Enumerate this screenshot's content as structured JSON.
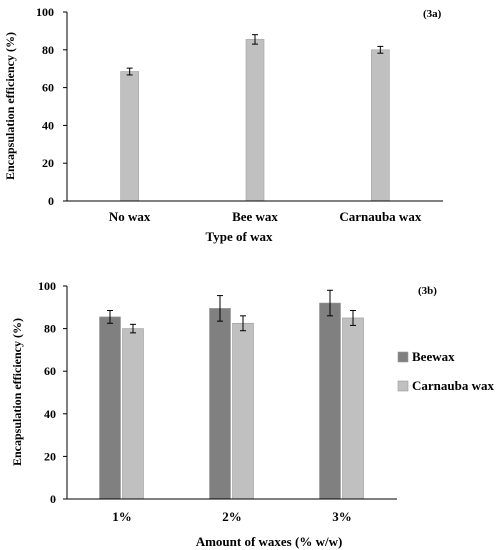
{
  "chart_data": [
    {
      "type": "bar",
      "panel_label": "(3a)",
      "categories": [
        "No wax",
        "Bee wax",
        "Carnauba wax"
      ],
      "values": [
        68.5,
        85.5,
        80
      ],
      "errors": [
        1.8,
        2.5,
        1.8
      ],
      "xlabel": "Type of wax",
      "ylabel": "Encapsulation efficiency (%)",
      "ylim": [
        0,
        100
      ],
      "yticks": [
        "0",
        "20",
        "40",
        "60",
        "80",
        "100"
      ],
      "colors": [
        "#c0c0c0"
      ]
    },
    {
      "type": "bar",
      "panel_label": "(3b)",
      "categories": [
        "1%",
        "2%",
        "3%"
      ],
      "series": [
        {
          "name": "Beewax",
          "values": [
            85.5,
            89.5,
            92
          ],
          "errors": [
            3,
            6,
            6
          ],
          "color": "#808080"
        },
        {
          "name": "Carnauba wax",
          "values": [
            80,
            82.5,
            85
          ],
          "errors": [
            2,
            3.5,
            3.5
          ],
          "color": "#c0c0c0"
        }
      ],
      "xlabel": "Amount of waxes (% w/w)",
      "ylabel": "Encapsulation efficiency (%)",
      "ylim": [
        0,
        100
      ],
      "yticks": [
        "0",
        "20",
        "40",
        "60",
        "80",
        "100"
      ],
      "legend_position": "right"
    }
  ]
}
